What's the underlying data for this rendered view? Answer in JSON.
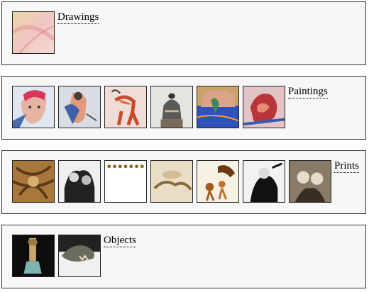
{
  "categories": {
    "drawings": {
      "label": "Drawings"
    },
    "paintings": {
      "label": "Paintings"
    },
    "prints": {
      "label": "Prints"
    },
    "objects": {
      "label": "Objects"
    }
  },
  "colors": {
    "panel_bg": "#f7f7f7",
    "panel_border": "#333333",
    "link_text": "#000000"
  }
}
